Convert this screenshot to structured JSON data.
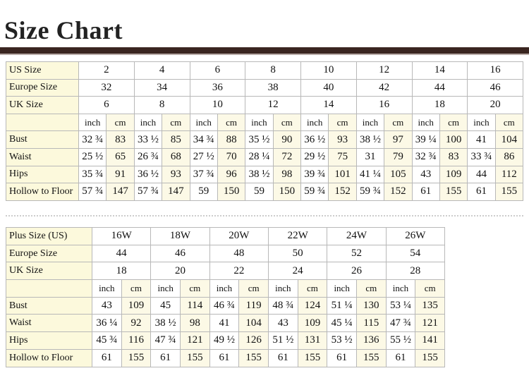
{
  "header": {
    "title": "Size Chart"
  },
  "tables": [
    {
      "size_rows": [
        {
          "label": "US Size",
          "values": [
            "2",
            "4",
            "6",
            "8",
            "10",
            "12",
            "14",
            "16"
          ]
        },
        {
          "label": "Europe Size",
          "values": [
            "32",
            "34",
            "36",
            "38",
            "40",
            "42",
            "44",
            "46"
          ]
        },
        {
          "label": "UK Size",
          "values": [
            "6",
            "8",
            "10",
            "12",
            "14",
            "16",
            "18",
            "20"
          ]
        }
      ],
      "unit_labels": [
        "inch",
        "cm"
      ],
      "measure_rows": [
        {
          "label": "Bust",
          "values": [
            "32 ¾",
            "83",
            "33 ½",
            "85",
            "34 ¾",
            "88",
            "35 ½",
            "90",
            "36 ½",
            "93",
            "38 ½",
            "97",
            "39 ¼",
            "100",
            "41",
            "104"
          ]
        },
        {
          "label": "Waist",
          "values": [
            "25 ½",
            "65",
            "26 ¾",
            "68",
            "27 ½",
            "70",
            "28 ¼",
            "72",
            "29 ½",
            "75",
            "31",
            "79",
            "32 ¾",
            "83",
            "33 ¾",
            "86"
          ]
        },
        {
          "label": "Hips",
          "values": [
            "35 ¾",
            "91",
            "36 ½",
            "93",
            "37 ¾",
            "96",
            "38 ½",
            "98",
            "39 ¾",
            "101",
            "41 ¼",
            "105",
            "43",
            "109",
            "44",
            "112"
          ]
        },
        {
          "label": "Hollow to Floor",
          "values": [
            "57 ¾",
            "147",
            "57 ¾",
            "147",
            "59",
            "150",
            "59",
            "150",
            "59 ¾",
            "152",
            "59 ¾",
            "152",
            "61",
            "155",
            "61",
            "155"
          ]
        }
      ]
    },
    {
      "size_rows": [
        {
          "label": "Plus Size (US)",
          "values": [
            "16W",
            "18W",
            "20W",
            "22W",
            "24W",
            "26W"
          ]
        },
        {
          "label": "Europe Size",
          "values": [
            "44",
            "46",
            "48",
            "50",
            "52",
            "54"
          ]
        },
        {
          "label": "UK Size",
          "values": [
            "18",
            "20",
            "22",
            "24",
            "26",
            "28"
          ]
        }
      ],
      "unit_labels": [
        "inch",
        "cm"
      ],
      "measure_rows": [
        {
          "label": "Bust",
          "values": [
            "43",
            "109",
            "45",
            "114",
            "46 ¾",
            "119",
            "48 ¾",
            "124",
            "51 ¼",
            "130",
            "53 ¼",
            "135"
          ]
        },
        {
          "label": "Waist",
          "values": [
            "36 ¼",
            "92",
            "38 ½",
            "98",
            "41",
            "104",
            "43",
            "109",
            "45 ¼",
            "115",
            "47 ¾",
            "121"
          ]
        },
        {
          "label": "Hips",
          "values": [
            "45 ¾",
            "116",
            "47 ¾",
            "121",
            "49 ½",
            "126",
            "51 ½",
            "131",
            "53 ½",
            "136",
            "55 ½",
            "141"
          ]
        },
        {
          "label": "Hollow to Floor",
          "values": [
            "61",
            "155",
            "61",
            "155",
            "61",
            "155",
            "61",
            "155",
            "61",
            "155",
            "61",
            "155"
          ]
        }
      ]
    }
  ]
}
